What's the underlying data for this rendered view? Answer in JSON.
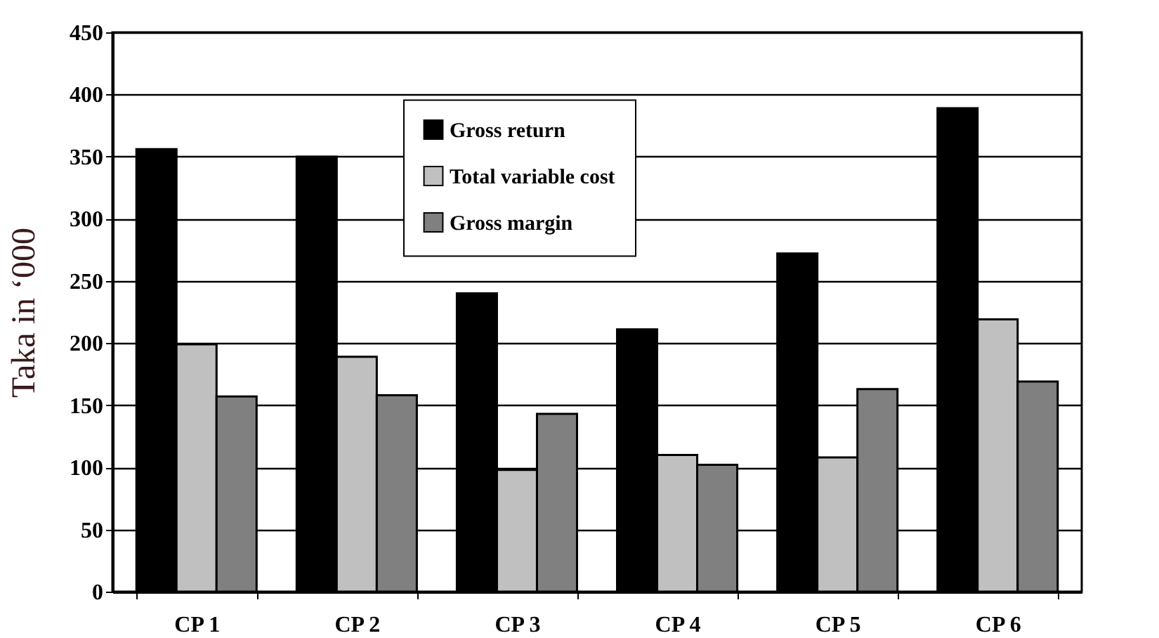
{
  "chart_data": {
    "type": "bar",
    "ylabel": "Taka in ‘000",
    "categories": [
      "CP 1",
      "CP 2",
      "CP 3",
      "CP 4",
      "CP 5",
      "CP 6"
    ],
    "series": [
      {
        "name": "Gross return",
        "color": "#000000",
        "values": [
          356,
          350,
          240,
          211,
          272,
          389
        ]
      },
      {
        "name": "Total variable cost",
        "color": "#c0c0c0",
        "values": [
          199,
          189,
          98,
          110,
          108,
          219
        ]
      },
      {
        "name": "Gross margin",
        "color": "#808080",
        "values": [
          157,
          158,
          143,
          102,
          163,
          169
        ]
      }
    ],
    "ylim": [
      0,
      450
    ],
    "yticks": [
      0,
      50,
      100,
      150,
      200,
      250,
      300,
      350,
      400,
      450
    ],
    "grid": "y",
    "legend": "top"
  }
}
